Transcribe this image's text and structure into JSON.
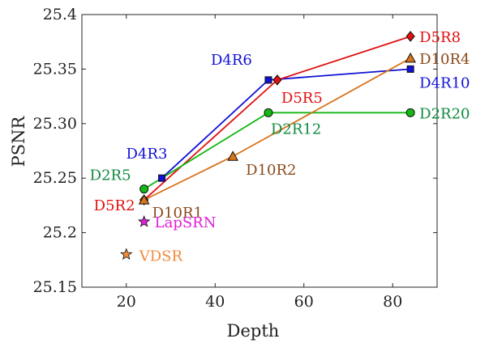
{
  "chart_data": {
    "type": "line",
    "xlabel": "Depth",
    "ylabel": "PSNR",
    "xlim": [
      10,
      90
    ],
    "ylim": [
      25.15,
      25.4
    ],
    "xticks": [
      20,
      40,
      60,
      80
    ],
    "yticks": [
      25.15,
      25.2,
      25.25,
      25.3,
      25.35,
      25.4
    ],
    "grid": false,
    "legend": "none",
    "series": [
      {
        "name": "D4R",
        "color": "#1010d8",
        "marker": "square",
        "points": [
          {
            "x": 28,
            "y": 25.25,
            "label": "D4R3"
          },
          {
            "x": 52,
            "y": 25.34,
            "label": "D4R6"
          },
          {
            "x": 84,
            "y": 25.35,
            "label": "D4R10"
          }
        ]
      },
      {
        "name": "D5R",
        "color": "#e01010",
        "marker": "diamond",
        "points": [
          {
            "x": 24,
            "y": 25.23,
            "label": "D5R2"
          },
          {
            "x": 54,
            "y": 25.34,
            "label": "D5R5"
          },
          {
            "x": 84,
            "y": 25.38,
            "label": "D5R8"
          }
        ]
      },
      {
        "name": "D2R",
        "color": "#14b814",
        "marker": "circle",
        "points": [
          {
            "x": 24,
            "y": 25.24,
            "label": "D2R5"
          },
          {
            "x": 52,
            "y": 25.31,
            "label": "D2R12"
          },
          {
            "x": 84,
            "y": 25.31,
            "label": "D2R20"
          }
        ]
      },
      {
        "name": "D10R",
        "color": "#d8741c",
        "marker": "triangle",
        "points": [
          {
            "x": 24,
            "y": 25.23,
            "label": "D10R1"
          },
          {
            "x": 44,
            "y": 25.27,
            "label": "D10R2"
          },
          {
            "x": 84,
            "y": 25.36,
            "label": "D10R4"
          }
        ]
      }
    ],
    "single_points": [
      {
        "name": "LapSRN",
        "x": 24,
        "y": 25.21,
        "color": "#e020d8",
        "marker": "star",
        "label": "LapSRN"
      },
      {
        "name": "VDSR",
        "x": 20,
        "y": 25.18,
        "color": "#f08a3c",
        "marker": "star",
        "label": "VDSR"
      }
    ],
    "label_colors": {
      "D4R": "#1010d8",
      "D5R": "#e01010",
      "D2R": "#0e8a3e",
      "D10R": "#8a4a1a",
      "LapSRN": "#e020d8",
      "VDSR": "#f08a3c"
    }
  }
}
